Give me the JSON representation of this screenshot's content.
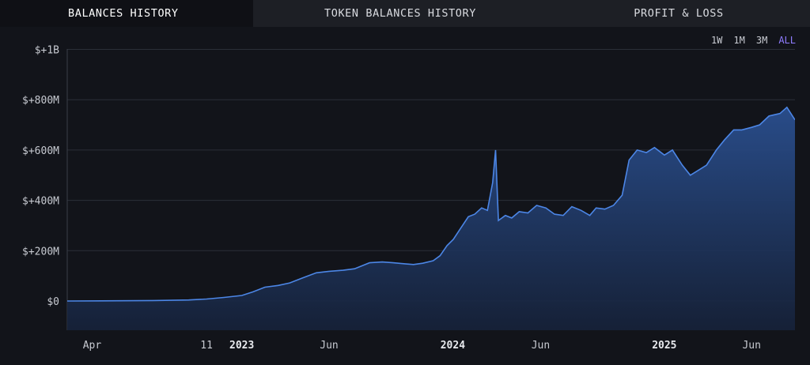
{
  "tabs": [
    {
      "label": "BALANCES HISTORY",
      "active": true
    },
    {
      "label": "TOKEN BALANCES HISTORY",
      "active": false
    },
    {
      "label": "PROFIT & LOSS",
      "active": false
    }
  ],
  "ranges": [
    {
      "label": "1W",
      "active": false
    },
    {
      "label": "1M",
      "active": false
    },
    {
      "label": "3M",
      "active": false
    },
    {
      "label": "ALL",
      "active": true
    }
  ],
  "colors": {
    "accent": "#8f7cff",
    "line": "#4c86e6",
    "fill_top": "#2a4f8f",
    "fill_bottom": "#16223a"
  },
  "chart_data": {
    "type": "area",
    "y_tick_labels": [
      "$0",
      "$+200M",
      "$+400M",
      "$+600M",
      "$+800M",
      "$+1B"
    ],
    "y_tick_values": [
      0,
      200,
      400,
      600,
      800,
      1000
    ],
    "ylim": [
      -115,
      1000
    ],
    "y_unit": "millions USD",
    "x_tick_labels": [
      {
        "label": "Apr",
        "date": "2022-04-01",
        "bold": false
      },
      {
        "label": "11",
        "date": "2022-11-01",
        "bold": false
      },
      {
        "label": "2023",
        "date": "2023-01-01",
        "bold": true
      },
      {
        "label": "Jun",
        "date": "2023-06-01",
        "bold": false
      },
      {
        "label": "2024",
        "date": "2024-01-01",
        "bold": true
      },
      {
        "label": "Jun",
        "date": "2024-06-01",
        "bold": false
      },
      {
        "label": "2025",
        "date": "2025-01-01",
        "bold": true
      },
      {
        "label": "Jun",
        "date": "2025-06-01",
        "bold": false
      }
    ],
    "xlim": [
      "2022-03-05",
      "2025-08-15"
    ],
    "grid": true,
    "series": [
      {
        "x": [
          "2022-03-05",
          "2022-06-01",
          "2022-08-01",
          "2022-10-01",
          "2022-11-01",
          "2022-12-01",
          "2023-01-01",
          "2023-01-20",
          "2023-02-10",
          "2023-03-05",
          "2023-03-25",
          "2023-04-20",
          "2023-05-10",
          "2023-06-01",
          "2023-06-25",
          "2023-07-15",
          "2023-08-10",
          "2023-09-01",
          "2023-09-20",
          "2023-10-10",
          "2023-10-25",
          "2023-11-10",
          "2023-11-28",
          "2023-12-10",
          "2023-12-22",
          "2024-01-02",
          "2024-01-15",
          "2024-01-28",
          "2024-02-08",
          "2024-02-20",
          "2024-03-01",
          "2024-03-10",
          "2024-03-15",
          "2024-03-20",
          "2024-04-01",
          "2024-04-12",
          "2024-04-25",
          "2024-05-10",
          "2024-05-25",
          "2024-06-10",
          "2024-06-25",
          "2024-07-10",
          "2024-07-25",
          "2024-08-10",
          "2024-08-25",
          "2024-09-05",
          "2024-09-20",
          "2024-10-05",
          "2024-10-20",
          "2024-11-01",
          "2024-11-15",
          "2024-12-01",
          "2024-12-15",
          "2025-01-01",
          "2025-01-15",
          "2025-02-01",
          "2025-02-15",
          "2025-03-01",
          "2025-03-15",
          "2025-04-01",
          "2025-04-15",
          "2025-05-01",
          "2025-05-15",
          "2025-06-01",
          "2025-06-15",
          "2025-07-01",
          "2025-07-10",
          "2025-07-20",
          "2025-08-01",
          "2025-08-15"
        ],
        "y": [
          0,
          1,
          2,
          4,
          8,
          14,
          22,
          36,
          55,
          62,
          72,
          95,
          112,
          118,
          122,
          128,
          152,
          155,
          152,
          148,
          145,
          150,
          160,
          180,
          220,
          245,
          290,
          335,
          345,
          370,
          360,
          470,
          600,
          320,
          340,
          330,
          355,
          350,
          380,
          370,
          345,
          340,
          375,
          360,
          340,
          370,
          365,
          380,
          420,
          560,
          600,
          590,
          610,
          580,
          600,
          540,
          500,
          520,
          540,
          600,
          640,
          680,
          680,
          690,
          700,
          735,
          740,
          745,
          770,
          720
        ]
      }
    ]
  }
}
